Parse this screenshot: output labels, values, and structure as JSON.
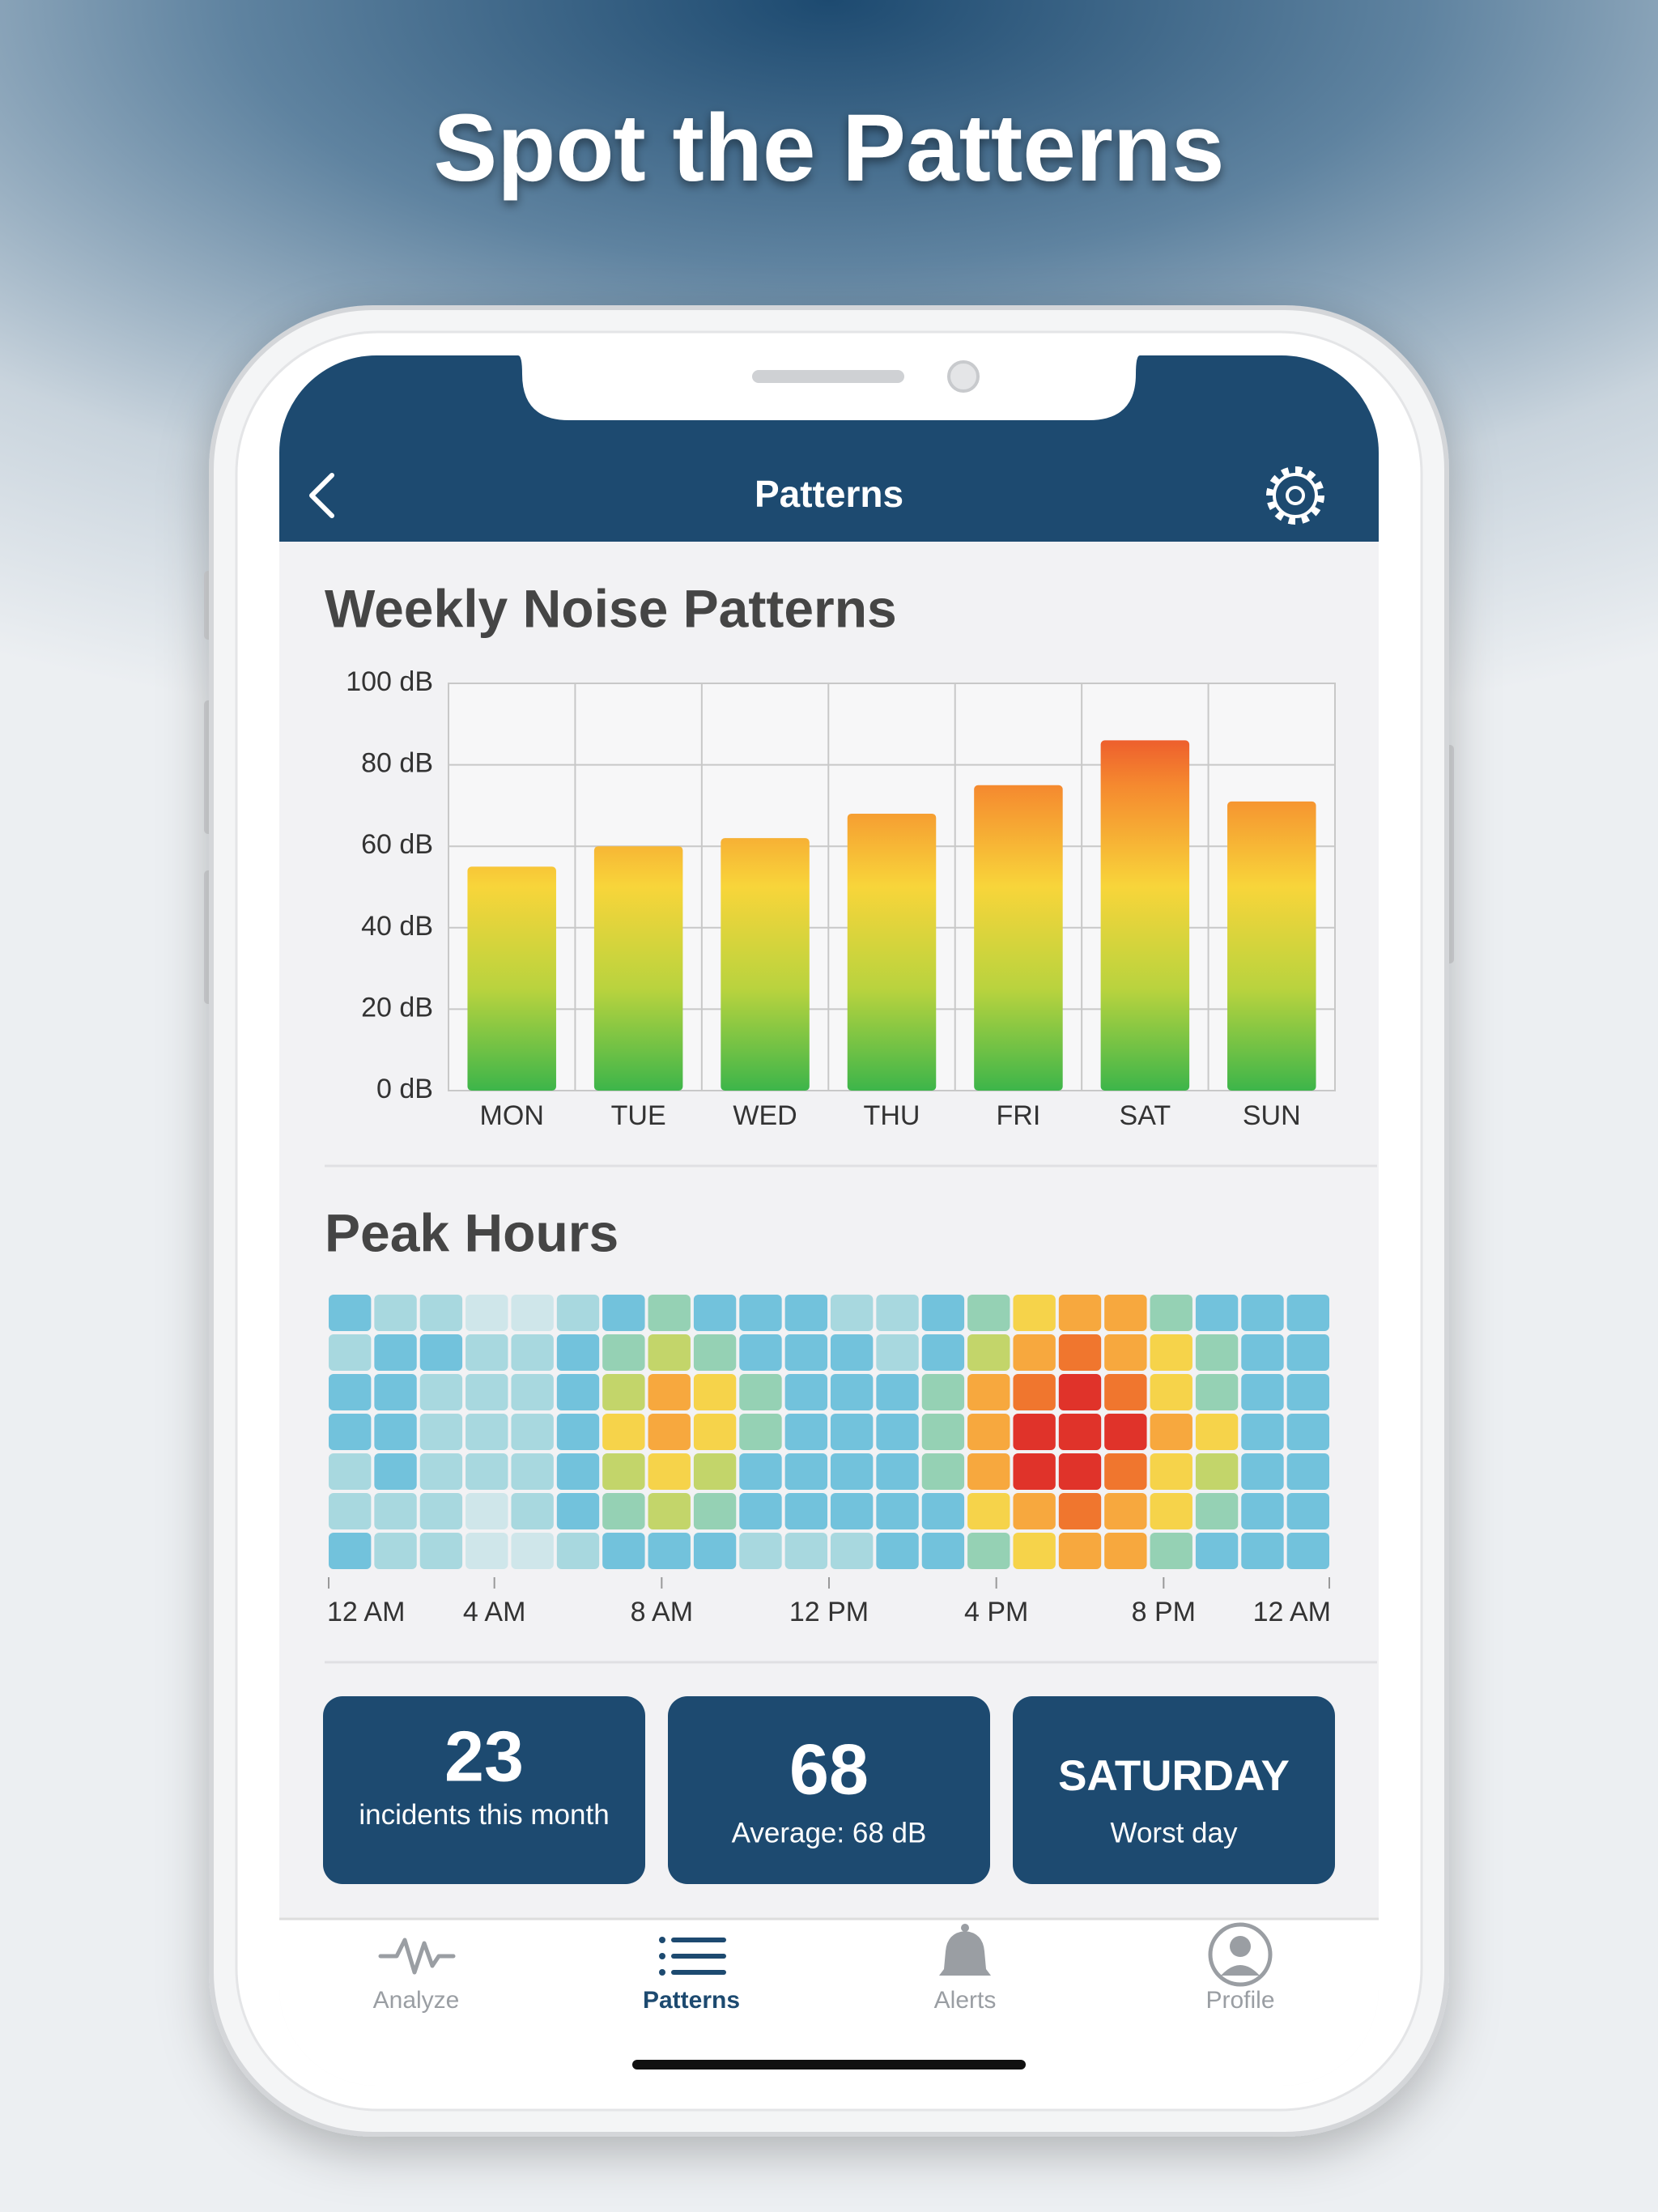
{
  "headline": "Spot the Patterns",
  "header": {
    "title": "Patterns"
  },
  "chart_data": [
    {
      "type": "bar",
      "title": "Weekly Noise Patterns",
      "categories": [
        "MON",
        "TUE",
        "WED",
        "THU",
        "FRI",
        "SAT",
        "SUN"
      ],
      "values": [
        55,
        60,
        62,
        68,
        75,
        86,
        71
      ],
      "ylim": [
        0,
        100
      ],
      "yticks": [
        {
          "value": 0,
          "label": "0 dB"
        },
        {
          "value": 20,
          "label": "20 dB"
        },
        {
          "value": 40,
          "label": "40 dB"
        },
        {
          "value": 60,
          "label": "60 dB"
        },
        {
          "value": 80,
          "label": "80 dB"
        },
        {
          "value": 100,
          "label": "100 dB"
        }
      ],
      "grid": true,
      "colors": [
        "#3db54a",
        "#b9d33e",
        "#f8d53a",
        "#f5892f",
        "#e42a2a"
      ]
    },
    {
      "type": "heatmap",
      "title": "Peak Hours",
      "values": [
        [
          3,
          2,
          2,
          1,
          1,
          2,
          3,
          4,
          3,
          3,
          3,
          2,
          2,
          3,
          4,
          6,
          7,
          7,
          4,
          3,
          3,
          3
        ],
        [
          2,
          3,
          3,
          2,
          2,
          3,
          4,
          5,
          4,
          3,
          3,
          3,
          2,
          3,
          5,
          7,
          8,
          7,
          6,
          4,
          3,
          3
        ],
        [
          3,
          3,
          2,
          2,
          2,
          3,
          5,
          7,
          6,
          4,
          3,
          3,
          3,
          4,
          7,
          8,
          9,
          8,
          6,
          4,
          3,
          3
        ],
        [
          3,
          3,
          2,
          2,
          2,
          3,
          6,
          7,
          6,
          4,
          3,
          3,
          3,
          4,
          7,
          9,
          9,
          9,
          7,
          6,
          3,
          3
        ],
        [
          2,
          3,
          2,
          2,
          2,
          3,
          5,
          6,
          5,
          3,
          3,
          3,
          3,
          4,
          7,
          9,
          9,
          8,
          6,
          5,
          3,
          3
        ],
        [
          2,
          2,
          2,
          1,
          2,
          3,
          4,
          5,
          4,
          3,
          3,
          3,
          3,
          3,
          6,
          7,
          8,
          7,
          6,
          4,
          3,
          3
        ],
        [
          3,
          2,
          2,
          1,
          1,
          2,
          3,
          3,
          3,
          2,
          2,
          2,
          3,
          3,
          4,
          6,
          7,
          7,
          4,
          3,
          3,
          3
        ]
      ],
      "zlim": [
        1,
        9
      ],
      "colorscale": [
        "#cfe6ea",
        "#a8d8df",
        "#72c2dc",
        "#95d1b4",
        "#c3d56a",
        "#f6d34a",
        "#f7a83e",
        "#f0762e",
        "#e0332a"
      ],
      "xlabels": [
        "12 AM",
        "4 AM",
        "8 AM",
        "12 PM",
        "4 PM",
        "8 PM",
        "12 AM"
      ]
    }
  ],
  "stats": [
    {
      "value": 23,
      "label": "incidents this month"
    },
    {
      "value": 68,
      "label": "Average: 68 dB"
    },
    {
      "value": "SATURDAY",
      "label": "Worst day"
    }
  ],
  "nav": {
    "items": [
      "Analyze",
      "Patterns",
      "Alerts",
      "Profile"
    ],
    "active": 1,
    "color": "#1d4a70",
    "inactive_color": "#9a9ea3"
  }
}
